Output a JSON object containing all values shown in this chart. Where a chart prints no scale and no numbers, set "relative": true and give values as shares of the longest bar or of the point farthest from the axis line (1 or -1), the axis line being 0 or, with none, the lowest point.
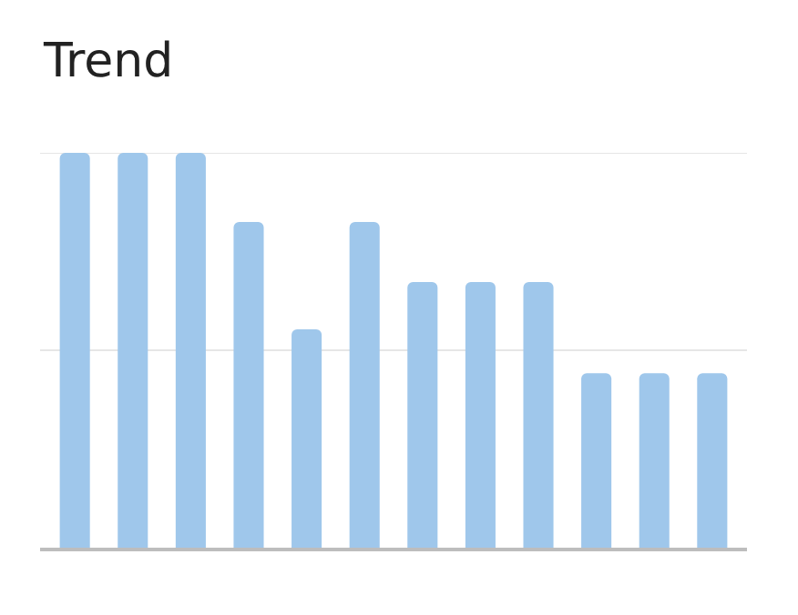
{
  "chart_data": {
    "type": "bar",
    "title": "Trend",
    "categories": [
      null,
      null,
      null,
      null,
      null,
      null,
      null,
      null,
      null,
      null,
      null,
      null
    ],
    "values": [
      1,
      1,
      1,
      0.825,
      0.553,
      0.825,
      0.673,
      0.673,
      0.673,
      0.442,
      0.442,
      0.442
    ],
    "color": "#9fc7eb",
    "relative": true,
    "ref_lines": [
      {
        "axis": "y",
        "value": 0.5,
        "color": "#e6e6e6"
      },
      {
        "axis": "y",
        "value": 1,
        "color": "#e6e6e6"
      }
    ]
  }
}
